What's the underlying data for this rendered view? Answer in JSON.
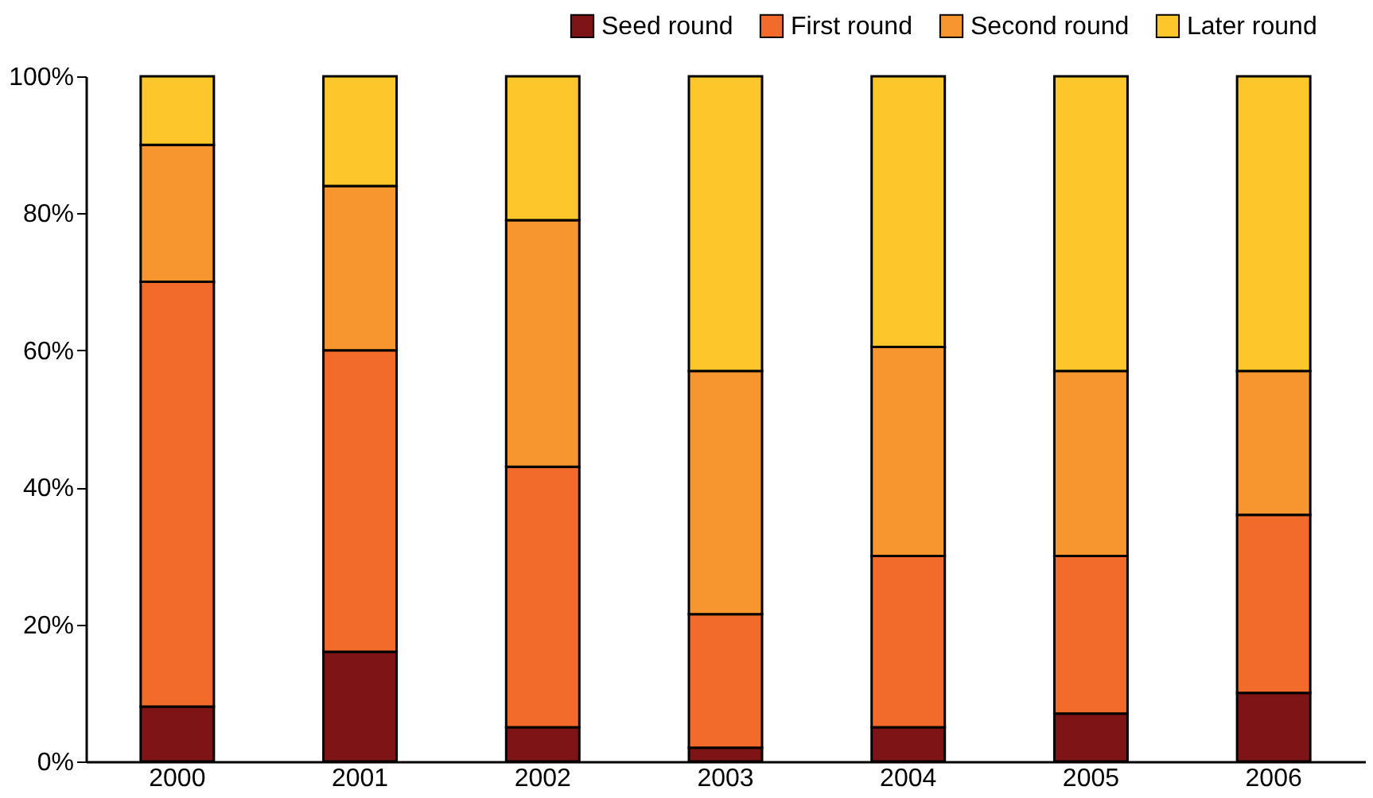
{
  "chart_data": {
    "type": "bar",
    "stacked": true,
    "categories": [
      "2000",
      "2001",
      "2002",
      "2003",
      "2004",
      "2005",
      "2006"
    ],
    "series": [
      {
        "name": "Seed round",
        "color": "#7f1416",
        "values": [
          8,
          16,
          5,
          2,
          5,
          7,
          10
        ]
      },
      {
        "name": "First round",
        "color": "#f26b2b",
        "values": [
          62,
          44,
          38,
          19.5,
          25,
          23,
          26
        ]
      },
      {
        "name": "Second round",
        "color": "#f7962f",
        "values": [
          20,
          24,
          36,
          35.5,
          30.5,
          27,
          21
        ]
      },
      {
        "name": "Later round",
        "color": "#fdc72b",
        "values": [
          10,
          16,
          21,
          43,
          39.5,
          43,
          43
        ]
      }
    ],
    "ylim": [
      0,
      100
    ],
    "yticks": [
      {
        "value": 0,
        "label": "0%"
      },
      {
        "value": 20,
        "label": "20%"
      },
      {
        "value": 40,
        "label": "40%"
      },
      {
        "value": 60,
        "label": "60%"
      },
      {
        "value": 80,
        "label": "80%"
      },
      {
        "value": 100,
        "label": "100%"
      }
    ],
    "grid": false,
    "legend": "top right"
  }
}
